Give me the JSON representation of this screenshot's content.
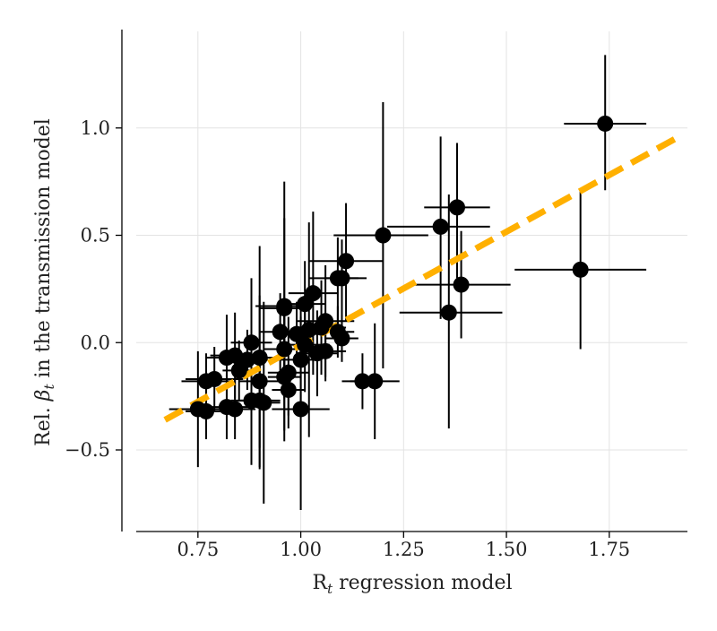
{
  "chart_data": {
    "type": "scatter",
    "title": "",
    "xlabel": "R_t regression model",
    "ylabel": "Rel. β_t in the transmission model",
    "xlabel_parts": {
      "main": "R",
      "sub": "t",
      "rest": " regression model"
    },
    "ylabel_parts": {
      "pre": "Rel. ",
      "symbol": "β",
      "sub": "t",
      "rest": " in the transmission model"
    },
    "xlim": [
      0.6,
      1.94
    ],
    "ylim": [
      -0.88,
      1.45
    ],
    "x_ticks": [
      0.75,
      1.0,
      1.25,
      1.5,
      1.75
    ],
    "x_tick_labels": [
      "0.75",
      "1.00",
      "1.25",
      "1.50",
      "1.75"
    ],
    "y_ticks": [
      -0.5,
      0.0,
      0.5,
      1.0
    ],
    "y_tick_labels": [
      "−0.5",
      "0.0",
      "0.5",
      "1.0"
    ],
    "grid": true,
    "colors": {
      "points": "#000000",
      "error_bars": "#000000",
      "fit_line": "#FFB000",
      "grid": "#e3e3e3"
    },
    "fit_line": {
      "x": [
        0.67,
        1.92
      ],
      "y": [
        -0.36,
        0.96
      ],
      "style": "dashed"
    },
    "points": [
      {
        "x": 1.74,
        "y": 1.02,
        "xerr": [
          0.1,
          0.1
        ],
        "yerr": [
          0.31,
          0.32
        ]
      },
      {
        "x": 1.38,
        "y": 0.63,
        "xerr": [
          0.08,
          0.08
        ],
        "yerr": [
          0.33,
          0.3
        ]
      },
      {
        "x": 1.34,
        "y": 0.54,
        "xerr": [
          0.13,
          0.12
        ],
        "yerr": [
          0.43,
          0.42
        ]
      },
      {
        "x": 1.2,
        "y": 0.5,
        "xerr": [
          0.12,
          0.11
        ],
        "yerr": [
          0.62,
          0.62
        ]
      },
      {
        "x": 1.68,
        "y": 0.34,
        "xerr": [
          0.16,
          0.16
        ],
        "yerr": [
          0.37,
          0.37
        ]
      },
      {
        "x": 1.39,
        "y": 0.27,
        "xerr": [
          0.12,
          0.12
        ],
        "yerr": [
          0.25,
          0.25
        ]
      },
      {
        "x": 1.36,
        "y": 0.14,
        "xerr": [
          0.12,
          0.13
        ],
        "yerr": [
          0.54,
          0.55
        ]
      },
      {
        "x": 1.11,
        "y": 0.38,
        "xerr": [
          0.09,
          0.09
        ],
        "yerr": [
          0.28,
          0.27
        ]
      },
      {
        "x": 1.09,
        "y": 0.3,
        "xerr": [
          0.07,
          0.07
        ],
        "yerr": [
          0.21,
          0.19
        ]
      },
      {
        "x": 1.1,
        "y": 0.3,
        "xerr": [
          0.04,
          0.04
        ],
        "yerr": [
          0.18,
          0.18
        ]
      },
      {
        "x": 1.03,
        "y": 0.23,
        "xerr": [
          0.06,
          0.06
        ],
        "yerr": [
          0.38,
          0.38
        ]
      },
      {
        "x": 1.01,
        "y": 0.18,
        "xerr": [
          0.05,
          0.05
        ],
        "yerr": [
          0.2,
          0.2
        ]
      },
      {
        "x": 0.96,
        "y": 0.17,
        "xerr": [
          0.07,
          0.07
        ],
        "yerr": [
          0.58,
          0.58
        ]
      },
      {
        "x": 0.96,
        "y": 0.16,
        "xerr": [
          0.06,
          0.06
        ],
        "yerr": [
          0.42,
          0.42
        ]
      },
      {
        "x": 1.06,
        "y": 0.1,
        "xerr": [
          0.07,
          0.07
        ],
        "yerr": [
          0.28,
          0.26
        ]
      },
      {
        "x": 1.05,
        "y": 0.07,
        "xerr": [
          0.06,
          0.06
        ],
        "yerr": [
          0.22,
          0.22
        ]
      },
      {
        "x": 1.02,
        "y": 0.06,
        "xerr": [
          0.04,
          0.04
        ],
        "yerr": [
          0.5,
          0.5
        ]
      },
      {
        "x": 1.09,
        "y": 0.05,
        "xerr": [
          0.04,
          0.04
        ],
        "yerr": [
          0.12,
          0.12
        ]
      },
      {
        "x": 0.99,
        "y": 0.04,
        "xerr": [
          0.05,
          0.05
        ],
        "yerr": [
          0.15,
          0.15
        ]
      },
      {
        "x": 0.95,
        "y": 0.05,
        "xerr": [
          0.05,
          0.05
        ],
        "yerr": [
          0.18,
          0.18
        ]
      },
      {
        "x": 1.1,
        "y": 0.02,
        "xerr": [
          0.04,
          0.04
        ],
        "yerr": [
          0.11,
          0.11
        ]
      },
      {
        "x": 0.88,
        "y": 0.0,
        "xerr": [
          0.05,
          0.05
        ],
        "yerr": [
          0.3,
          0.3
        ]
      },
      {
        "x": 1.01,
        "y": -0.01,
        "xerr": [
          0.06,
          0.06
        ],
        "yerr": [
          0.22,
          0.22
        ]
      },
      {
        "x": 0.96,
        "y": -0.03,
        "xerr": [
          0.05,
          0.05
        ],
        "yerr": [
          0.22,
          0.22
        ]
      },
      {
        "x": 1.06,
        "y": -0.04,
        "xerr": [
          0.05,
          0.05
        ],
        "yerr": [
          0.12,
          0.12
        ]
      },
      {
        "x": 1.04,
        "y": -0.05,
        "xerr": [
          0.05,
          0.05
        ],
        "yerr": [
          0.2,
          0.2
        ]
      },
      {
        "x": 0.84,
        "y": -0.06,
        "xerr": [
          0.06,
          0.06
        ],
        "yerr": [
          0.2,
          0.2
        ]
      },
      {
        "x": 0.9,
        "y": -0.07,
        "xerr": [
          0.05,
          0.05
        ],
        "yerr": [
          0.52,
          0.52
        ]
      },
      {
        "x": 0.82,
        "y": -0.07,
        "xerr": [
          0.05,
          0.05
        ],
        "yerr": [
          0.2,
          0.2
        ]
      },
      {
        "x": 0.87,
        "y": -0.08,
        "xerr": [
          0.05,
          0.05
        ],
        "yerr": [
          0.14,
          0.14
        ]
      },
      {
        "x": 1.0,
        "y": -0.08,
        "xerr": [
          0.05,
          0.05
        ],
        "yerr": [
          0.2,
          0.2
        ]
      },
      {
        "x": 0.85,
        "y": -0.13,
        "xerr": [
          0.04,
          0.04
        ],
        "yerr": [
          0.14,
          0.14
        ]
      },
      {
        "x": 0.97,
        "y": -0.14,
        "xerr": [
          0.05,
          0.05
        ],
        "yerr": [
          0.26,
          0.26
        ]
      },
      {
        "x": 0.96,
        "y": -0.16,
        "xerr": [
          0.04,
          0.04
        ],
        "yerr": [
          0.3,
          0.3
        ]
      },
      {
        "x": 0.79,
        "y": -0.17,
        "xerr": [
          0.07,
          0.07
        ],
        "yerr": [
          0.15,
          0.15
        ]
      },
      {
        "x": 0.77,
        "y": -0.18,
        "xerr": [
          0.06,
          0.06
        ],
        "yerr": [
          0.13,
          0.13
        ]
      },
      {
        "x": 0.9,
        "y": -0.18,
        "xerr": [
          0.05,
          0.05
        ],
        "yerr": [
          0.4,
          0.4
        ]
      },
      {
        "x": 1.15,
        "y": -0.18,
        "xerr": [
          0.05,
          0.05
        ],
        "yerr": [
          0.13,
          0.13
        ]
      },
      {
        "x": 1.18,
        "y": -0.18,
        "xerr": [
          0.06,
          0.06
        ],
        "yerr": [
          0.27,
          0.27
        ]
      },
      {
        "x": 0.97,
        "y": -0.22,
        "xerr": [
          0.04,
          0.04
        ],
        "yerr": [
          0.12,
          0.12
        ]
      },
      {
        "x": 0.88,
        "y": -0.27,
        "xerr": [
          0.05,
          0.05
        ],
        "yerr": [
          0.3,
          0.3
        ]
      },
      {
        "x": 0.9,
        "y": -0.27,
        "xerr": [
          0.05,
          0.05
        ],
        "yerr": [
          0.22,
          0.22
        ]
      },
      {
        "x": 0.91,
        "y": -0.28,
        "xerr": [
          0.04,
          0.04
        ],
        "yerr": [
          0.47,
          0.47
        ]
      },
      {
        "x": 0.82,
        "y": -0.3,
        "xerr": [
          0.06,
          0.06
        ],
        "yerr": [
          0.15,
          0.15
        ]
      },
      {
        "x": 0.84,
        "y": -0.31,
        "xerr": [
          0.05,
          0.05
        ],
        "yerr": [
          0.14,
          0.14
        ]
      },
      {
        "x": 0.75,
        "y": -0.31,
        "xerr": [
          0.07,
          0.07
        ],
        "yerr": [
          0.27,
          0.27
        ]
      },
      {
        "x": 0.77,
        "y": -0.32,
        "xerr": [
          0.05,
          0.05
        ],
        "yerr": [
          0.13,
          0.13
        ]
      },
      {
        "x": 1.0,
        "y": -0.31,
        "xerr": [
          0.07,
          0.07
        ],
        "yerr": [
          0.47,
          0.47
        ]
      }
    ]
  }
}
